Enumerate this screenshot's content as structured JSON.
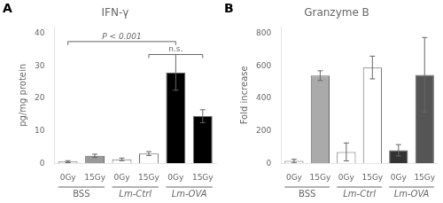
{
  "chart_data": [
    {
      "type": "bar",
      "panel_label": "A",
      "title": "IFN-γ",
      "ylabel": "pg/mg protein",
      "categories": [
        "0Gy",
        "15Gy",
        "0Gy",
        "15Gy",
        "0Gy",
        "15Gy"
      ],
      "groups": [
        "BSS",
        "Lm-Ctrl",
        "Lm-OVA"
      ],
      "values": [
        0.5,
        2.3,
        1.2,
        3.0,
        28.0,
        14.5
      ],
      "errors": [
        0.3,
        0.5,
        0.4,
        0.6,
        5.5,
        2.0
      ],
      "colors": [
        "#ffffff",
        "#999999",
        "#ffffff",
        "#ffffff",
        "#000000",
        "#000000"
      ],
      "ylim": [
        0,
        42
      ],
      "yticks": [
        0,
        10,
        20,
        30,
        40
      ],
      "grid": false,
      "annotations": [
        {
          "text": "P < 0.001",
          "from": 0,
          "to": 4,
          "y": 37.5
        },
        {
          "text": "n.s.",
          "from": 3,
          "to": 5,
          "y": 33.5
        }
      ]
    },
    {
      "type": "bar",
      "panel_label": "B",
      "title": "Granzyme B",
      "ylabel": "Fold increase",
      "categories": [
        "0Gy",
        "15Gy",
        "0Gy",
        "15Gy",
        "0Gy",
        "15Gy"
      ],
      "groups": [
        "BSS",
        "Lm-Ctrl",
        "Lm-OVA"
      ],
      "values": [
        15,
        540,
        70,
        590,
        80,
        545
      ],
      "errors": [
        10,
        30,
        55,
        70,
        35,
        230
      ],
      "colors": [
        "#ffffff",
        "#aaaaaa",
        "#ffffff",
        "#ffffff",
        "#333333",
        "#555555"
      ],
      "ylim": [
        0,
        840
      ],
      "yticks": [
        0,
        200,
        400,
        600,
        800
      ],
      "grid": false
    }
  ]
}
